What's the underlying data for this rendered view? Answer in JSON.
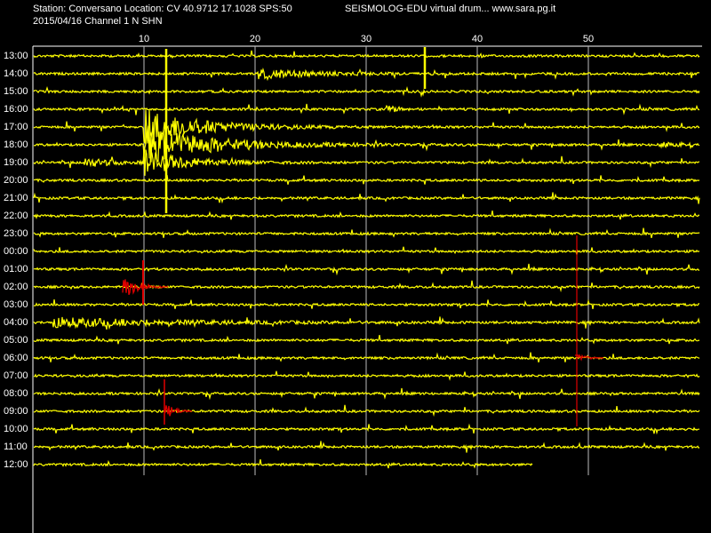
{
  "header": {
    "station": "Station: Conversano Location: CV 40.9712 17.1028 SPS:50",
    "product": "SEISMOLOG-EDU virtual drum... www.sara.pg.it",
    "date_channel": "2015/04/16  Channel 1 N SHN"
  },
  "x_axis": {
    "ticks": [
      10,
      20,
      30,
      40,
      50
    ]
  },
  "rows": [
    "13:00",
    "14:00",
    "15:00",
    "16:00",
    "17:00",
    "18:00",
    "19:00",
    "20:00",
    "21:00",
    "22:00",
    "23:00",
    "00:00",
    "01:00",
    "02:00",
    "03:00",
    "04:00",
    "05:00",
    "06:00",
    "07:00",
    "08:00",
    "09:00",
    "10:00",
    "11:00",
    "12:00"
  ]
}
